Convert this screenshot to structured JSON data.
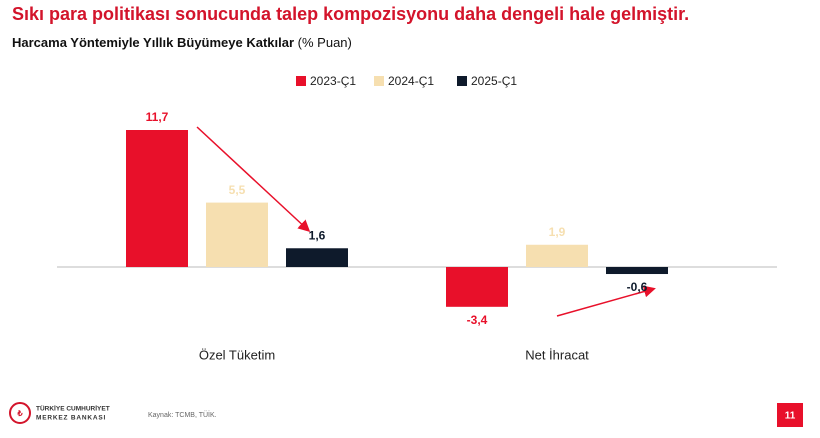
{
  "chart_data": {
    "type": "bar",
    "title": "Sıkı para politikası sonucunda talep kompozisyonu daha dengeli hale gelmiştir.",
    "subtitle": "Harcama Yöntemiyle Yıllık Büyümeye Katkılar",
    "subtitle_unit": "(% Puan)",
    "categories": [
      "Özel Tüketim",
      "Net İhracat"
    ],
    "series": [
      {
        "name": "2023-Ç1",
        "color": "#e8102a",
        "values": [
          11.7,
          -3.4
        ],
        "value_labels": [
          "11,7",
          "-3,4"
        ]
      },
      {
        "name": "2024-Ç1",
        "color": "#f6dfb0",
        "values": [
          5.5,
          1.9
        ],
        "value_labels": [
          "5,5",
          "1,9"
        ]
      },
      {
        "name": "2025-Ç1",
        "color": "#0e1a2b",
        "values": [
          1.6,
          -0.6
        ],
        "value_labels": [
          "1,6",
          "-0,6"
        ]
      }
    ],
    "legend": "top"
  },
  "footer": {
    "logo_line1": "TÜRKİYE CUMHURİYET",
    "logo_line2": "MERKEZ BANKASI",
    "source": "Kaynak: TCMB, TÜİK.",
    "page": "11"
  }
}
